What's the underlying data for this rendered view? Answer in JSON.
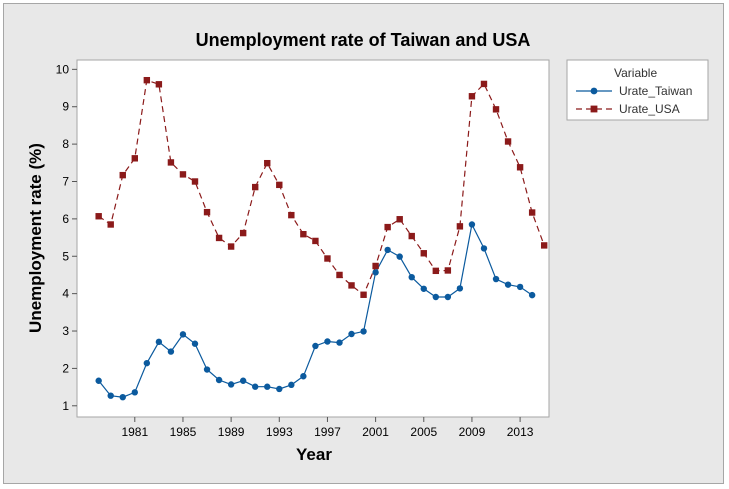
{
  "chart_data": {
    "type": "line",
    "title": "Unemployment rate of Taiwan and USA",
    "xlabel": "Year",
    "ylabel": "Unemployment rate (%)",
    "xlim": [
      1976.2,
      2015.4
    ],
    "ylim": [
      0.7,
      10.25
    ],
    "x_ticks": [
      1981,
      1985,
      1989,
      1993,
      1997,
      2001,
      2005,
      2009,
      2013
    ],
    "y_ticks": [
      1,
      2,
      3,
      4,
      5,
      6,
      7,
      8,
      9,
      10
    ],
    "legend": {
      "title": "Variable",
      "position": "right"
    },
    "series": [
      {
        "name": "Urate_Taiwan",
        "color": "#0b5a9e",
        "marker": "circle",
        "line_style": "solid",
        "x": [
          1978,
          1979,
          1980,
          1981,
          1982,
          1983,
          1984,
          1985,
          1986,
          1987,
          1988,
          1989,
          1990,
          1991,
          1992,
          1993,
          1994,
          1995,
          1996,
          1997,
          1998,
          1999,
          2000,
          2001,
          2002,
          2003,
          2004,
          2005,
          2006,
          2007,
          2008,
          2009,
          2010,
          2011,
          2012,
          2013,
          2014
        ],
        "values": [
          1.67,
          1.27,
          1.23,
          1.36,
          2.14,
          2.71,
          2.45,
          2.91,
          2.66,
          1.97,
          1.69,
          1.57,
          1.67,
          1.51,
          1.51,
          1.45,
          1.56,
          1.79,
          2.6,
          2.72,
          2.69,
          2.92,
          2.99,
          4.57,
          5.17,
          4.99,
          4.44,
          4.13,
          3.91,
          3.91,
          4.14,
          5.85,
          5.21,
          4.39,
          4.24,
          4.18,
          3.96
        ]
      },
      {
        "name": "Urate_USA",
        "color": "#8b1a1a",
        "marker": "square",
        "line_style": "dashed",
        "x": [
          1978,
          1979,
          1980,
          1981,
          1982,
          1983,
          1984,
          1985,
          1986,
          1987,
          1988,
          1989,
          1990,
          1991,
          1992,
          1993,
          1994,
          1995,
          1996,
          1997,
          1998,
          1999,
          2000,
          2001,
          2002,
          2003,
          2004,
          2005,
          2006,
          2007,
          2008,
          2009,
          2010,
          2011,
          2012,
          2013,
          2014,
          2015
        ],
        "values": [
          6.07,
          5.85,
          7.17,
          7.62,
          9.71,
          9.6,
          7.51,
          7.19,
          7.0,
          6.18,
          5.49,
          5.26,
          5.62,
          6.85,
          7.49,
          6.91,
          6.1,
          5.59,
          5.41,
          4.94,
          4.5,
          4.22,
          3.97,
          4.74,
          5.78,
          5.99,
          5.54,
          5.08,
          4.61,
          4.62,
          5.8,
          9.28,
          9.61,
          8.93,
          8.07,
          7.38,
          6.17,
          5.29
        ]
      }
    ]
  }
}
